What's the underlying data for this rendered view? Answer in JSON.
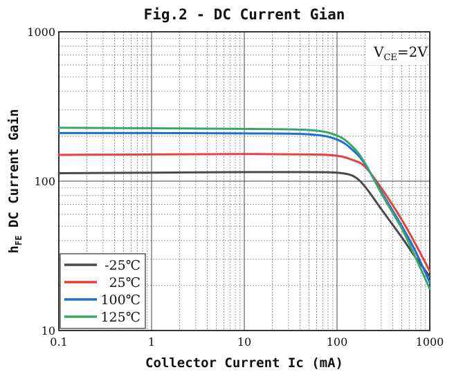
{
  "chart_data": {
    "type": "line",
    "title": "Fig.2 - DC Current Gian",
    "xlabel": "Collector  Current Ic (mA)",
    "ylabel_main": "h",
    "ylabel_sub": "FE",
    "ylabel_rest": " DC Current Gain",
    "annotation_main": "V",
    "annotation_sub": "CE",
    "annotation_rest": "=2V",
    "x_scale": "log",
    "y_scale": "log",
    "xlim": [
      0.1,
      1000
    ],
    "ylim": [
      10,
      1000
    ],
    "grid": true,
    "legend_position": "bottom-left",
    "x_ticks": [
      {
        "value": 0.1,
        "label": "0.1"
      },
      {
        "value": 1,
        "label": "1"
      },
      {
        "value": 10,
        "label": "10"
      },
      {
        "value": 100,
        "label": "100"
      },
      {
        "value": 1000,
        "label": "1000"
      }
    ],
    "y_ticks": [
      {
        "value": 10,
        "label": "10"
      },
      {
        "value": 100,
        "label": "100"
      },
      {
        "value": 1000,
        "label": "1000"
      }
    ],
    "x": [
      0.1,
      1,
      10,
      50,
      100,
      150,
      200,
      300,
      500,
      700,
      1000
    ],
    "series": [
      {
        "name": "-25℃",
        "color": "#4a4a4a",
        "values": [
          113,
          114,
          115,
          115,
          114,
          108,
          92,
          65,
          42,
          31,
          23
        ]
      },
      {
        "name": "25℃",
        "color": "#e8403f",
        "values": [
          150,
          151,
          152,
          151,
          148,
          138,
          125,
          90,
          55,
          38,
          25
        ]
      },
      {
        "name": "100℃",
        "color": "#1f6fd1",
        "values": [
          210,
          210,
          209,
          206,
          190,
          160,
          130,
          85,
          50,
          34,
          21
        ]
      },
      {
        "name": "125℃",
        "color": "#3aa56a",
        "values": [
          228,
          226,
          224,
          220,
          202,
          168,
          132,
          83,
          48,
          31,
          19
        ]
      }
    ]
  }
}
